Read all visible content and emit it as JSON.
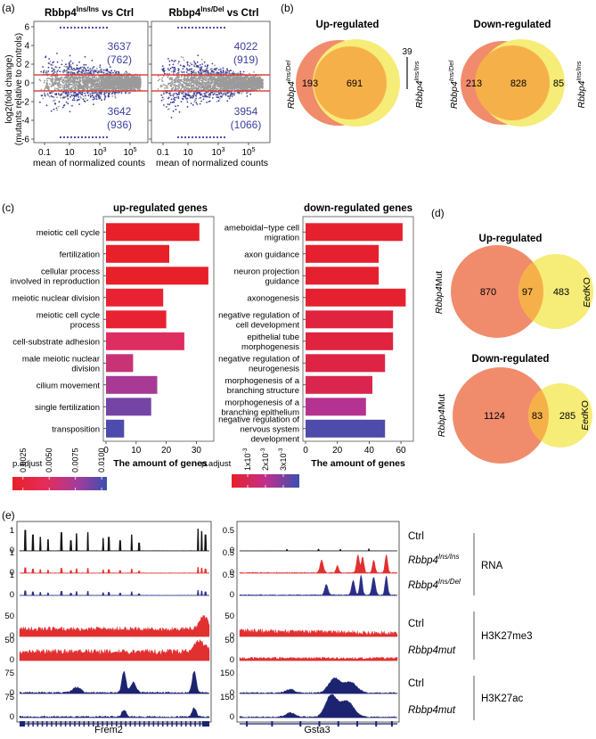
{
  "panel_labels": {
    "a": "(a)",
    "b": "(b)",
    "c": "(c)",
    "d": "(d)",
    "e": "(e)"
  },
  "colors": {
    "blue": "#3b3fa0",
    "red": "#e03030",
    "orange": "#f08c6c",
    "yellow": "#f6ec78",
    "overlap": "#f6b04a",
    "navy": "#1c2470",
    "grey": "#9a9a9a"
  },
  "panel_a": {
    "ylabel_line1": "log2(fold change)",
    "ylabel_line2": "(mutants relative to controls)",
    "xlabel": "mean of normalized counts",
    "plots": [
      {
        "title_gene": "Rbbp4",
        "title_sup": "Ins/Ins",
        "title_suffix": " vs Ctrl",
        "up": "3637",
        "up_paren": "(762)",
        "down": "3642",
        "down_paren": "(936)"
      },
      {
        "title_gene": "Rbbp4",
        "title_sup": "Ins/Del",
        "title_suffix": " vs Ctrl",
        "up": "4022",
        "up_paren": "(919)",
        "down": "3954",
        "down_paren": "(1066)"
      }
    ],
    "yticks": [
      "6",
      "4",
      "2",
      "0",
      "-2",
      "-4",
      "-6"
    ],
    "xticks": [
      {
        "base": "0.1"
      },
      {
        "base": "10"
      },
      {
        "base": "10",
        "sup": "3"
      },
      {
        "base": "10",
        "sup": "5"
      }
    ]
  },
  "panel_b": {
    "up": {
      "title": "Up-regulated",
      "left_only": "193",
      "both": "691",
      "right_only": "39",
      "left_label": "Rbbp4",
      "left_sup": "Ins/Del",
      "right_label": "Rbbp4",
      "right_sup": "Ins/Ins"
    },
    "down": {
      "title": "Down-regulated",
      "left_only": "213",
      "both": "828",
      "right_only": "85",
      "left_label": "Rbbp4",
      "left_sup": "Ins/Del",
      "right_label": "Rbbp4",
      "right_sup": "Ins/Ins"
    }
  },
  "panel_d": {
    "up": {
      "title": "Up-regulated",
      "left_only": "870",
      "both": "97",
      "right_only": "483",
      "left_label_i": "Rbbp4",
      "left_label": "Mut",
      "right_label_i": "Eed",
      "right_label": "KO"
    },
    "down": {
      "title": "Down-regulated",
      "left_only": "1124",
      "both": "83",
      "right_only": "285",
      "left_label_i": "Rbbp4",
      "left_label": "Mut",
      "right_label_i": "Eed",
      "right_label": "KO"
    }
  },
  "chart_data": [
    {
      "type": "bar",
      "title": "up-regulated genes",
      "xlabel": "The amount of genes",
      "xlim": [
        0,
        35
      ],
      "xticks": [
        "0",
        "10",
        "20",
        "30"
      ],
      "categories": [
        "meiotic cell cycle",
        "fertilization",
        "cellular process involved in reproduction",
        "meiotic nuclear division",
        "meiotic cell cycle process",
        "cell-substrate adhesion",
        "male meiotic nuclear division",
        "cilium movement",
        "single fertilization",
        "transposition"
      ],
      "values": [
        31,
        21,
        34,
        19,
        20,
        26,
        9,
        17,
        15,
        6
      ],
      "color_values": [
        0.0015,
        0.0015,
        0.0015,
        0.002,
        0.002,
        0.005,
        0.006,
        0.0075,
        0.009,
        0.01
      ],
      "legend_title": "p.adjust",
      "legend_ticks": [
        "0.0025",
        "0.0050",
        "0.0075",
        "0.0100"
      ],
      "color_range": [
        0.0015,
        0.0105
      ]
    },
    {
      "type": "bar",
      "title": "down-regulated genes",
      "xlabel": "The amount of genes",
      "xlim": [
        0,
        65
      ],
      "xticks": [
        "0",
        "20",
        "40",
        "60"
      ],
      "categories": [
        "ameboidal−type cell migration",
        "axon guidance",
        "neuron projection guidance",
        "axonogenesis",
        "negative regulation of cell development",
        "epithelial tube morphogenesis",
        "negative regulation of neurogenesis",
        "morphogenesis of a branching structure",
        "morphogenesis of a branching epithelium",
        "negative regulation of nervous system development"
      ],
      "values": [
        61,
        46,
        46,
        63,
        55,
        55,
        50,
        42,
        38,
        50
      ],
      "color_values": [
        0.0002,
        0.0002,
        0.0002,
        0.0002,
        0.0005,
        0.0005,
        0.0006,
        0.0008,
        0.0022,
        0.0036
      ],
      "legend_title": "p.adjust",
      "legend_ticks": [
        {
          "m": "1x10",
          "e": "-3"
        },
        {
          "m": "2x10",
          "e": "-3"
        },
        {
          "m": "3x10",
          "e": "-3"
        }
      ],
      "color_range": [
        0.0001,
        0.0039
      ]
    }
  ],
  "panel_e": {
    "genes": [
      "Frem2",
      "Gsta3"
    ],
    "track_labels": [
      {
        "text": "Ctrl",
        "italic": false
      },
      {
        "text": "Rbbp4",
        "sup": "Ins/Ins",
        "italic": true
      },
      {
        "text": "Rbbp4",
        "sup": "Ins/Del",
        "italic": true
      },
      {
        "text": "Ctrl",
        "italic": false
      },
      {
        "text": "Rbbp4mut",
        "italic": true
      },
      {
        "text": "Ctrl",
        "italic": false
      },
      {
        "text": "Rbbp4mut",
        "italic": true
      }
    ],
    "groups": [
      "RNA",
      "H3K27me3",
      "H3K27ac"
    ],
    "left_scale_top": [
      "1",
      "1",
      "1",
      "50",
      "50",
      "75",
      "75"
    ],
    "right_scale_top": [
      "0.5",
      "0.5",
      "0.5",
      "50",
      "50",
      "150",
      "150"
    ],
    "zero": "0"
  }
}
